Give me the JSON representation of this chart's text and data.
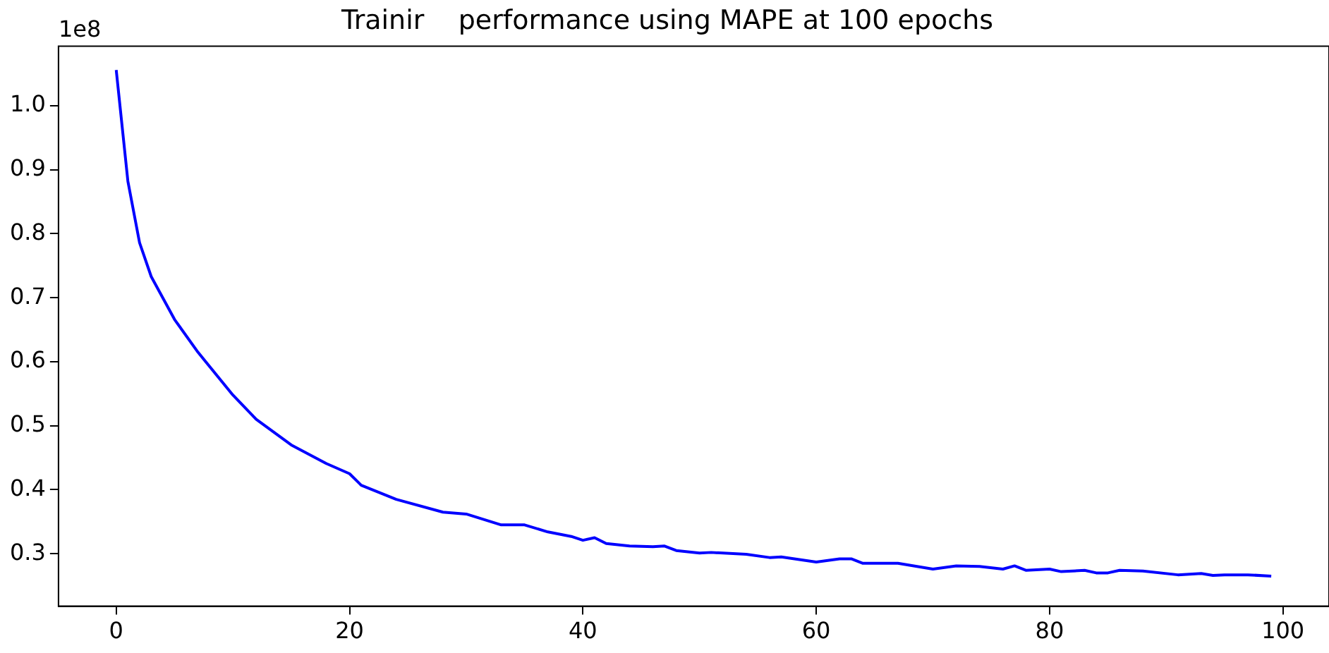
{
  "chart_data": {
    "type": "line",
    "title": "Trainir    performance using MAPE at 100 epochs",
    "annotations": [
      "1e8"
    ],
    "x": [
      0,
      1,
      2,
      3,
      5,
      7,
      10,
      12,
      15,
      18,
      20,
      21,
      24,
      28,
      30,
      33,
      35,
      37,
      39,
      40,
      41,
      42,
      44,
      46,
      47,
      48,
      50,
      51,
      54,
      56,
      57,
      60,
      62,
      63,
      64,
      67,
      70,
      72,
      74,
      76,
      77,
      78,
      80,
      81,
      83,
      84,
      85,
      86,
      88,
      91,
      93,
      94,
      95,
      97,
      99
    ],
    "series": [
      {
        "color": "#0000ff",
        "values": [
          1.056,
          0.882,
          0.786,
          0.733,
          0.666,
          0.615,
          0.548,
          0.51,
          0.47,
          0.441,
          0.425,
          0.407,
          0.385,
          0.365,
          0.362,
          0.345,
          0.345,
          0.334,
          0.327,
          0.321,
          0.325,
          0.316,
          0.312,
          0.311,
          0.312,
          0.305,
          0.301,
          0.302,
          0.299,
          0.294,
          0.295,
          0.287,
          0.292,
          0.292,
          0.285,
          0.285,
          0.276,
          0.281,
          0.28,
          0.276,
          0.281,
          0.274,
          0.276,
          0.272,
          0.274,
          0.27,
          0.27,
          0.274,
          0.273,
          0.267,
          0.269,
          0.266,
          0.267,
          0.267,
          0.265
        ]
      }
    ],
    "xlim": [
      -4.95,
      103.95
    ],
    "xticks": [
      0,
      20,
      40,
      60,
      80,
      100
    ],
    "ylim": [
      0.218,
      1.093
    ],
    "yticks": [
      0.3,
      0.4,
      0.5,
      0.6,
      0.7,
      0.8,
      0.9,
      {
        "value": 1,
        "label": "1.0"
      }
    ],
    "grid": false,
    "legend": false,
    "marker": "none",
    "line_style": "solid"
  }
}
